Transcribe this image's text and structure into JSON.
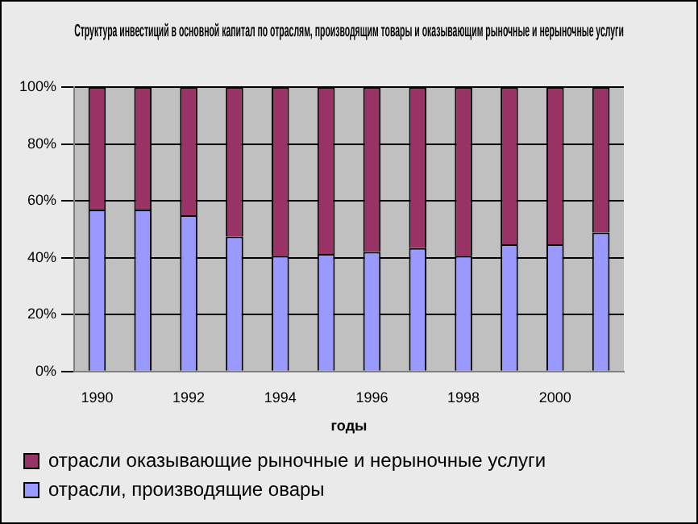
{
  "chart_data": {
    "type": "bar",
    "stacked": true,
    "title": "Структура инвестиций в основной капитал по отраслям, производящим товары и оказывающим рыночные и нерыночные услуги",
    "xlabel": "годы",
    "categories": [
      "1990",
      null,
      "1992",
      null,
      "1994",
      null,
      "1996",
      null,
      "1998",
      null,
      "2000",
      null
    ],
    "series": [
      {
        "name": "отрасли, производящие овары",
        "color": "#9999ff",
        "values": [
          57,
          57,
          55,
          47.5,
          40.7,
          41.4,
          42.1,
          43.4,
          40.7,
          44.8,
          44.8,
          48.9
        ]
      },
      {
        "name": "отрасли оказывающие рыночные и нерыночные услуги",
        "color": "#993366",
        "values": [
          43,
          43,
          45,
          52.5,
          59.3,
          58.6,
          57.9,
          56.6,
          59.3,
          55.2,
          55.2,
          51.1
        ]
      }
    ],
    "ylim": [
      0,
      100
    ],
    "yticks": [
      {
        "value": 0,
        "label": "0%"
      },
      {
        "value": 20,
        "label": "20%"
      },
      {
        "value": 40,
        "label": "40%"
      },
      {
        "value": 60,
        "label": "60%"
      },
      {
        "value": 80,
        "label": "80%"
      },
      {
        "value": 100,
        "label": "100%"
      }
    ],
    "grid": "y",
    "legend": "bottom"
  }
}
